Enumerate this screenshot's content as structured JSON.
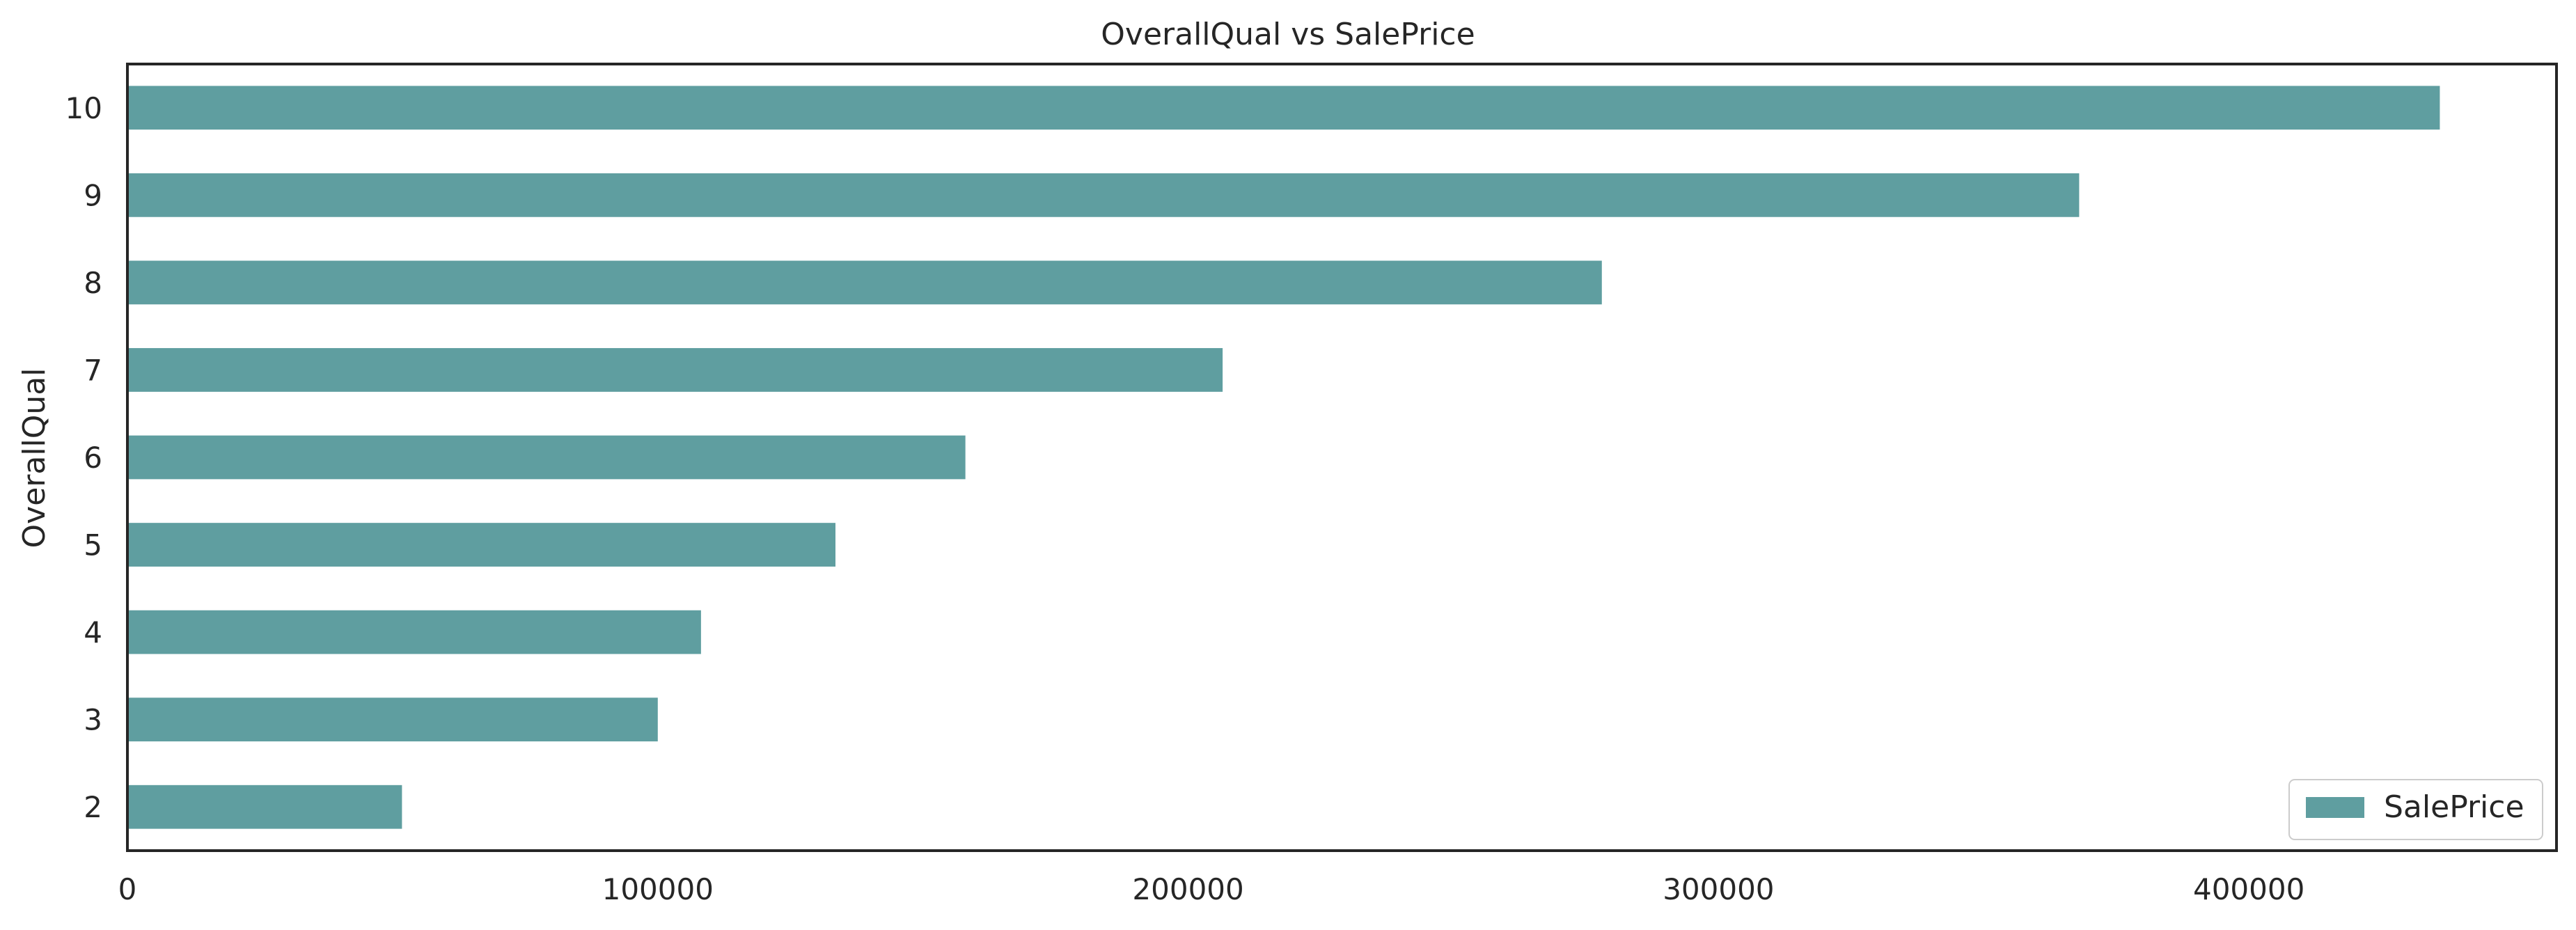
{
  "chart_data": {
    "type": "bar",
    "orientation": "horizontal",
    "title": "OverallQual vs SalePrice",
    "ylabel": "OverallQual",
    "xlabel": "",
    "categories": [
      "2",
      "3",
      "4",
      "5",
      "6",
      "7",
      "8",
      "9",
      "10"
    ],
    "series": [
      {
        "name": "SalePrice",
        "values": [
          51770,
          100000,
          108150,
          133500,
          158000,
          206500,
          278000,
          368000,
          436000
        ]
      }
    ],
    "xlim": [
      0,
      458000
    ],
    "xticks": [
      0,
      100000,
      200000,
      300000,
      400000
    ],
    "xtick_labels": [
      "0",
      "100000",
      "200000",
      "300000",
      "400000"
    ],
    "grid": false,
    "legend_position": "lower-right",
    "colors": {
      "bar": "#5f9ea0",
      "axes": "#262626",
      "text": "#262626",
      "background": "#ffffff"
    }
  }
}
